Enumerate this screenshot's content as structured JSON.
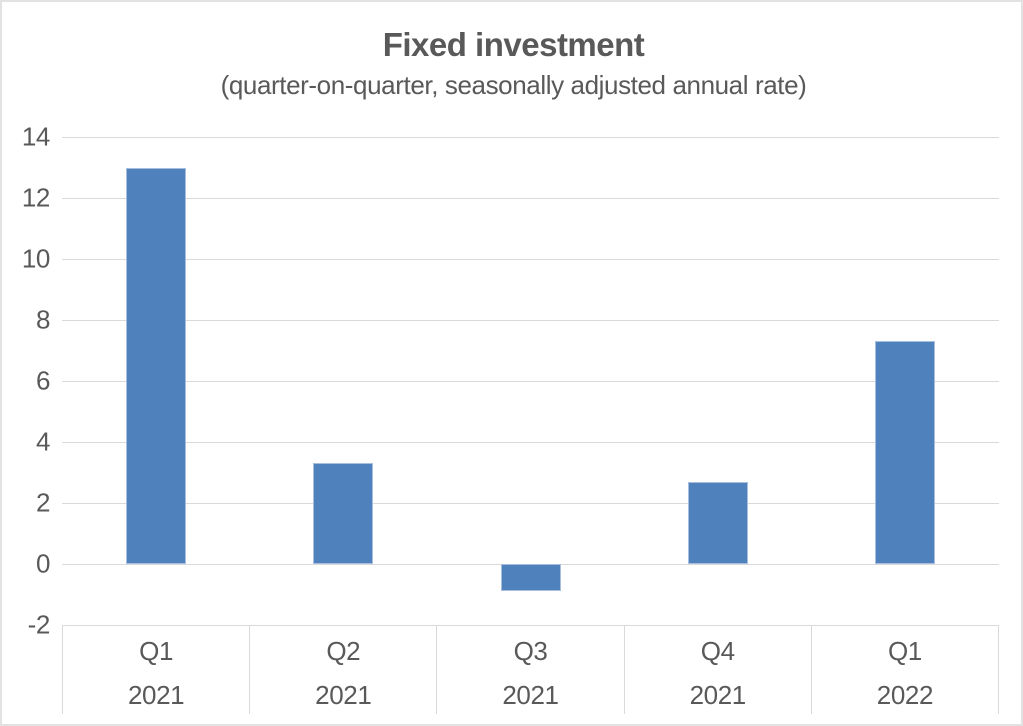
{
  "chart_data": {
    "type": "bar",
    "title": "Fixed investment",
    "subtitle": "(quarter-on-quarter, seasonally adjusted annual rate)",
    "categories": [
      {
        "quarter": "Q1",
        "year": "2021"
      },
      {
        "quarter": "Q2",
        "year": "2021"
      },
      {
        "quarter": "Q3",
        "year": "2021"
      },
      {
        "quarter": "Q4",
        "year": "2021"
      },
      {
        "quarter": "Q1",
        "year": "2022"
      }
    ],
    "values": [
      13.0,
      3.3,
      -0.9,
      2.7,
      7.3
    ],
    "xlabel": "",
    "ylabel": "",
    "ylim": [
      -2,
      14
    ],
    "ytick_step": 2,
    "yticks": [
      14,
      12,
      10,
      8,
      6,
      4,
      2,
      0,
      -2
    ],
    "grid": true,
    "legend": "none",
    "bar_color": "#4f81bd",
    "bar_border_color": "#a7bedf",
    "gridline_color": "#d9d9d9",
    "axis_table_border_color": "#d9d9d9",
    "text_color": "#595959"
  }
}
